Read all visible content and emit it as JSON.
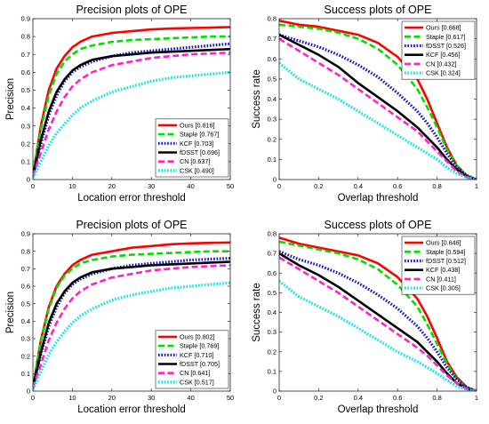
{
  "chart_data": [
    {
      "type": "line",
      "title": "Precision plots of OPE",
      "xlabel": "Location error threshold",
      "ylabel": "Precision",
      "xlim": [
        0,
        50
      ],
      "ylim": [
        0,
        0.9
      ],
      "xticks": [
        "0",
        "10",
        "20",
        "30",
        "40",
        "50"
      ],
      "yticks": [
        "0",
        "0.1",
        "0.2",
        "0.3",
        "0.4",
        "0.5",
        "0.6",
        "0.7",
        "0.8",
        "0.9"
      ],
      "legend_position": "bottom-right",
      "grid": false,
      "series": [
        {
          "name": "Ours [0.816]",
          "color": "#ff0000",
          "style": "solid",
          "x": [
            0,
            2,
            4,
            6,
            8,
            10,
            12,
            15,
            20,
            25,
            30,
            35,
            40,
            45,
            50
          ],
          "y": [
            0.02,
            0.3,
            0.5,
            0.62,
            0.69,
            0.74,
            0.77,
            0.8,
            0.82,
            0.83,
            0.84,
            0.845,
            0.848,
            0.85,
            0.853
          ]
        },
        {
          "name": "Staple [0.767]",
          "color": "#00e000",
          "style": "dashed",
          "x": [
            0,
            2,
            4,
            6,
            8,
            10,
            12,
            15,
            20,
            25,
            30,
            35,
            40,
            45,
            50
          ],
          "y": [
            0.02,
            0.28,
            0.47,
            0.59,
            0.66,
            0.7,
            0.73,
            0.75,
            0.77,
            0.78,
            0.785,
            0.79,
            0.795,
            0.8,
            0.8
          ]
        },
        {
          "name": "KCF [0.703]",
          "color": "#1010c0",
          "style": "dotted",
          "x": [
            0,
            2,
            4,
            6,
            8,
            10,
            12,
            15,
            20,
            25,
            30,
            35,
            40,
            45,
            50
          ],
          "y": [
            0.02,
            0.2,
            0.36,
            0.47,
            0.55,
            0.6,
            0.63,
            0.66,
            0.69,
            0.71,
            0.72,
            0.73,
            0.74,
            0.75,
            0.76
          ]
        },
        {
          "name": "fDSST [0.696]",
          "color": "#000000",
          "style": "solid",
          "x": [
            0,
            2,
            4,
            6,
            8,
            10,
            12,
            15,
            20,
            25,
            30,
            35,
            40,
            45,
            50
          ],
          "y": [
            0.02,
            0.22,
            0.38,
            0.49,
            0.56,
            0.61,
            0.64,
            0.67,
            0.69,
            0.7,
            0.71,
            0.715,
            0.72,
            0.725,
            0.73
          ]
        },
        {
          "name": "CN [0.637]",
          "color": "#ff22cc",
          "style": "dashed",
          "x": [
            0,
            2,
            4,
            6,
            8,
            10,
            12,
            15,
            20,
            25,
            30,
            35,
            40,
            45,
            50
          ],
          "y": [
            0.02,
            0.15,
            0.28,
            0.38,
            0.46,
            0.52,
            0.56,
            0.6,
            0.64,
            0.66,
            0.68,
            0.69,
            0.7,
            0.705,
            0.71
          ]
        },
        {
          "name": "CSK [0.490]",
          "color": "#00e5ee",
          "style": "dotted",
          "x": [
            0,
            2,
            4,
            6,
            8,
            10,
            12,
            15,
            20,
            25,
            30,
            35,
            40,
            45,
            50
          ],
          "y": [
            0.01,
            0.1,
            0.19,
            0.26,
            0.31,
            0.36,
            0.4,
            0.44,
            0.49,
            0.52,
            0.55,
            0.57,
            0.58,
            0.59,
            0.6
          ]
        }
      ]
    },
    {
      "type": "line",
      "title": "Success plots of OPE",
      "xlabel": "Overlap threshold",
      "ylabel": "Success rate",
      "xlim": [
        0,
        1
      ],
      "ylim": [
        0,
        0.8
      ],
      "xticks": [
        "0",
        "0.2",
        "0.4",
        "0.6",
        "0.8",
        "1"
      ],
      "yticks": [
        "0",
        "0.1",
        "0.2",
        "0.3",
        "0.4",
        "0.5",
        "0.6",
        "0.7",
        "0.8"
      ],
      "legend_position": "top-right",
      "grid": false,
      "series": [
        {
          "name": "Ours [0.668]",
          "color": "#ff0000",
          "style": "solid",
          "x": [
            0,
            0.1,
            0.2,
            0.3,
            0.4,
            0.5,
            0.6,
            0.7,
            0.75,
            0.8,
            0.85,
            0.9,
            0.95,
            1.0
          ],
          "y": [
            0.79,
            0.77,
            0.76,
            0.74,
            0.72,
            0.68,
            0.61,
            0.5,
            0.4,
            0.28,
            0.16,
            0.07,
            0.02,
            0.0
          ]
        },
        {
          "name": "Staple [0.617]",
          "color": "#00e000",
          "style": "dashed",
          "x": [
            0,
            0.1,
            0.2,
            0.3,
            0.4,
            0.5,
            0.6,
            0.7,
            0.75,
            0.8,
            0.85,
            0.9,
            0.95,
            1.0
          ],
          "y": [
            0.77,
            0.76,
            0.75,
            0.73,
            0.7,
            0.65,
            0.57,
            0.45,
            0.36,
            0.26,
            0.15,
            0.07,
            0.02,
            0.0
          ]
        },
        {
          "name": "fDSST [0.526]",
          "color": "#1010c0",
          "style": "dotted",
          "x": [
            0,
            0.1,
            0.2,
            0.3,
            0.4,
            0.5,
            0.6,
            0.7,
            0.75,
            0.8,
            0.85,
            0.9,
            0.95,
            1.0
          ],
          "y": [
            0.72,
            0.69,
            0.66,
            0.62,
            0.57,
            0.51,
            0.43,
            0.34,
            0.28,
            0.21,
            0.13,
            0.06,
            0.02,
            0.0
          ]
        },
        {
          "name": "KCF [0.456]",
          "color": "#000000",
          "style": "solid",
          "x": [
            0,
            0.1,
            0.2,
            0.3,
            0.4,
            0.5,
            0.6,
            0.7,
            0.75,
            0.8,
            0.85,
            0.9,
            0.95,
            1.0
          ],
          "y": [
            0.72,
            0.67,
            0.62,
            0.56,
            0.48,
            0.41,
            0.34,
            0.26,
            0.21,
            0.16,
            0.1,
            0.05,
            0.015,
            0.0
          ]
        },
        {
          "name": "CN [0.432]",
          "color": "#ff22cc",
          "style": "dashed",
          "x": [
            0,
            0.1,
            0.2,
            0.3,
            0.4,
            0.5,
            0.6,
            0.7,
            0.75,
            0.8,
            0.85,
            0.9,
            0.95,
            1.0
          ],
          "y": [
            0.7,
            0.64,
            0.58,
            0.52,
            0.45,
            0.38,
            0.31,
            0.24,
            0.19,
            0.14,
            0.09,
            0.04,
            0.012,
            0.0
          ]
        },
        {
          "name": "CSK [0.324]",
          "color": "#00e5ee",
          "style": "dotted",
          "x": [
            0,
            0.1,
            0.2,
            0.3,
            0.4,
            0.5,
            0.6,
            0.7,
            0.75,
            0.8,
            0.85,
            0.9,
            0.95,
            1.0
          ],
          "y": [
            0.58,
            0.5,
            0.45,
            0.4,
            0.34,
            0.28,
            0.22,
            0.16,
            0.13,
            0.1,
            0.06,
            0.03,
            0.01,
            0.0
          ]
        }
      ]
    },
    {
      "type": "line",
      "title": "Precision plots of OPE",
      "xlabel": "Location error threshold",
      "ylabel": "Precision",
      "xlim": [
        0,
        50
      ],
      "ylim": [
        0,
        0.9
      ],
      "xticks": [
        "0",
        "10",
        "20",
        "30",
        "40",
        "50"
      ],
      "yticks": [
        "0",
        "0.1",
        "0.2",
        "0.3",
        "0.4",
        "0.5",
        "0.6",
        "0.7",
        "0.8",
        "0.9"
      ],
      "legend_position": "bottom-right",
      "grid": false,
      "series": [
        {
          "name": "Ours [0.802]",
          "color": "#ff0000",
          "style": "solid",
          "x": [
            0,
            2,
            4,
            6,
            8,
            10,
            12,
            15,
            20,
            25,
            30,
            35,
            40,
            45,
            50
          ],
          "y": [
            0.02,
            0.29,
            0.48,
            0.6,
            0.67,
            0.72,
            0.75,
            0.78,
            0.8,
            0.82,
            0.83,
            0.84,
            0.845,
            0.848,
            0.85
          ]
        },
        {
          "name": "Staple [0.769]",
          "color": "#00e000",
          "style": "dashed",
          "x": [
            0,
            2,
            4,
            6,
            8,
            10,
            12,
            15,
            20,
            25,
            30,
            35,
            40,
            45,
            50
          ],
          "y": [
            0.02,
            0.28,
            0.47,
            0.59,
            0.66,
            0.7,
            0.73,
            0.75,
            0.77,
            0.78,
            0.785,
            0.79,
            0.795,
            0.8,
            0.8
          ]
        },
        {
          "name": "KCF [0.710]",
          "color": "#1010c0",
          "style": "dotted",
          "x": [
            0,
            2,
            4,
            6,
            8,
            10,
            12,
            15,
            20,
            25,
            30,
            35,
            40,
            45,
            50
          ],
          "y": [
            0.02,
            0.21,
            0.37,
            0.48,
            0.56,
            0.61,
            0.64,
            0.67,
            0.7,
            0.72,
            0.73,
            0.74,
            0.75,
            0.755,
            0.76
          ]
        },
        {
          "name": "fDSST [0.705]",
          "color": "#000000",
          "style": "solid",
          "x": [
            0,
            2,
            4,
            6,
            8,
            10,
            12,
            15,
            20,
            25,
            30,
            35,
            40,
            45,
            50
          ],
          "y": [
            0.02,
            0.22,
            0.39,
            0.5,
            0.57,
            0.62,
            0.65,
            0.68,
            0.7,
            0.71,
            0.72,
            0.725,
            0.73,
            0.735,
            0.74
          ]
        },
        {
          "name": "CN [0.641]",
          "color": "#ff22cc",
          "style": "dashed",
          "x": [
            0,
            2,
            4,
            6,
            8,
            10,
            12,
            15,
            20,
            25,
            30,
            35,
            40,
            45,
            50
          ],
          "y": [
            0.02,
            0.15,
            0.29,
            0.39,
            0.47,
            0.53,
            0.57,
            0.61,
            0.65,
            0.67,
            0.69,
            0.7,
            0.71,
            0.715,
            0.72
          ]
        },
        {
          "name": "CSK [0.517]",
          "color": "#00e5ee",
          "style": "dotted",
          "x": [
            0,
            2,
            4,
            6,
            8,
            10,
            12,
            15,
            20,
            25,
            30,
            35,
            40,
            45,
            50
          ],
          "y": [
            0.01,
            0.11,
            0.21,
            0.28,
            0.34,
            0.39,
            0.43,
            0.47,
            0.52,
            0.55,
            0.57,
            0.59,
            0.6,
            0.61,
            0.62
          ]
        }
      ]
    },
    {
      "type": "line",
      "title": "Success plots of OPE",
      "xlabel": "Overlap threshold",
      "ylabel": "Success rate",
      "xlim": [
        0,
        1
      ],
      "ylim": [
        0,
        0.8
      ],
      "xticks": [
        "0",
        "0.2",
        "0.4",
        "0.6",
        "0.8",
        "1"
      ],
      "yticks": [
        "0",
        "0.1",
        "0.2",
        "0.3",
        "0.4",
        "0.5",
        "0.6",
        "0.7",
        "0.8"
      ],
      "legend_position": "top-right",
      "grid": false,
      "series": [
        {
          "name": "Ours [0.646]",
          "color": "#ff0000",
          "style": "solid",
          "x": [
            0,
            0.1,
            0.2,
            0.3,
            0.4,
            0.5,
            0.6,
            0.7,
            0.75,
            0.8,
            0.85,
            0.9,
            0.95,
            1.0
          ],
          "y": [
            0.78,
            0.75,
            0.73,
            0.71,
            0.69,
            0.65,
            0.58,
            0.47,
            0.38,
            0.27,
            0.15,
            0.07,
            0.02,
            0.0
          ]
        },
        {
          "name": "Staple [0.594]",
          "color": "#00e000",
          "style": "dashed",
          "x": [
            0,
            0.1,
            0.2,
            0.3,
            0.4,
            0.5,
            0.6,
            0.7,
            0.75,
            0.8,
            0.85,
            0.9,
            0.95,
            1.0
          ],
          "y": [
            0.76,
            0.74,
            0.72,
            0.7,
            0.67,
            0.62,
            0.54,
            0.43,
            0.34,
            0.24,
            0.14,
            0.06,
            0.02,
            0.0
          ]
        },
        {
          "name": "fDSST [0.512]",
          "color": "#1010c0",
          "style": "dotted",
          "x": [
            0,
            0.1,
            0.2,
            0.3,
            0.4,
            0.5,
            0.6,
            0.7,
            0.75,
            0.8,
            0.85,
            0.9,
            0.95,
            1.0
          ],
          "y": [
            0.71,
            0.67,
            0.64,
            0.6,
            0.55,
            0.49,
            0.42,
            0.33,
            0.27,
            0.2,
            0.12,
            0.06,
            0.02,
            0.0
          ]
        },
        {
          "name": "KCF [0.438]",
          "color": "#000000",
          "style": "solid",
          "x": [
            0,
            0.1,
            0.2,
            0.3,
            0.4,
            0.5,
            0.6,
            0.7,
            0.75,
            0.8,
            0.85,
            0.9,
            0.95,
            1.0
          ],
          "y": [
            0.7,
            0.64,
            0.59,
            0.53,
            0.46,
            0.39,
            0.32,
            0.25,
            0.2,
            0.15,
            0.09,
            0.04,
            0.012,
            0.0
          ]
        },
        {
          "name": "CN [0.411]",
          "color": "#ff22cc",
          "style": "dashed",
          "x": [
            0,
            0.1,
            0.2,
            0.3,
            0.4,
            0.5,
            0.6,
            0.7,
            0.75,
            0.8,
            0.85,
            0.9,
            0.95,
            1.0
          ],
          "y": [
            0.68,
            0.62,
            0.56,
            0.5,
            0.43,
            0.36,
            0.29,
            0.22,
            0.18,
            0.13,
            0.08,
            0.04,
            0.01,
            0.0
          ]
        },
        {
          "name": "CSK [0.305]",
          "color": "#00e5ee",
          "style": "dotted",
          "x": [
            0,
            0.1,
            0.2,
            0.3,
            0.4,
            0.5,
            0.6,
            0.7,
            0.75,
            0.8,
            0.85,
            0.9,
            0.95,
            1.0
          ],
          "y": [
            0.56,
            0.48,
            0.43,
            0.38,
            0.32,
            0.26,
            0.2,
            0.15,
            0.12,
            0.09,
            0.055,
            0.025,
            0.008,
            0.0
          ]
        }
      ]
    }
  ]
}
